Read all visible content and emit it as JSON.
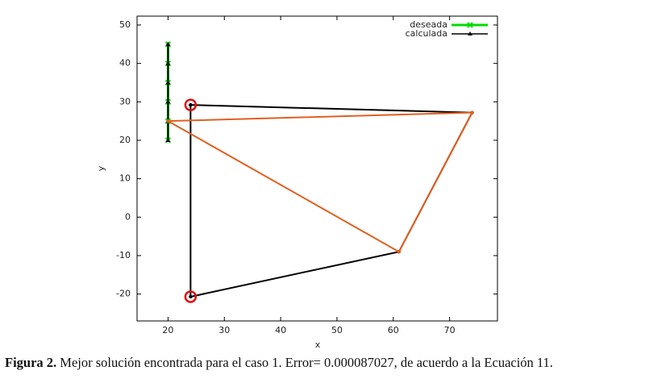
{
  "chart_data": {
    "type": "line",
    "xlabel": "x",
    "ylabel": "y",
    "xlim": [
      14.5,
      78.5
    ],
    "ylim": [
      -27,
      52.3
    ],
    "xticks": [
      20,
      30,
      40,
      50,
      60,
      70
    ],
    "yticks": [
      -20,
      -10,
      0,
      10,
      20,
      30,
      40,
      50
    ],
    "legend": "upper right",
    "series": [
      {
        "name": "deseada",
        "color": "#00dd00",
        "marker": "x",
        "line": true,
        "x": [
          20,
          20,
          20,
          20,
          20,
          20
        ],
        "y": [
          20,
          25,
          30,
          35,
          40,
          45
        ]
      },
      {
        "name": "calculada",
        "color": "#000000",
        "marker": "triangle",
        "line": true,
        "x": [
          20,
          20,
          20,
          20,
          20,
          20
        ],
        "y": [
          20,
          25,
          30,
          35,
          40,
          45
        ]
      },
      {
        "color": "#000000",
        "marker": "dot",
        "line": true,
        "x": [
          24,
          74,
          61,
          24,
          24
        ],
        "y": [
          29.2,
          27.2,
          -9,
          -20.7,
          29.2
        ]
      },
      {
        "color": "#e06020",
        "marker": "dot",
        "line": true,
        "x": [
          20,
          74,
          61,
          20
        ],
        "y": [
          25,
          27.2,
          -9,
          25
        ]
      },
      {
        "color": "#e01010",
        "marker": "circle",
        "line": false,
        "x": [
          24,
          24
        ],
        "y": [
          29.2,
          -20.7
        ]
      }
    ]
  },
  "caption": {
    "label": "Figura 2.",
    "text": "Mejor solución encontrada para el caso 1. Error= 0.000087027, de acuerdo a la Ecuación 11."
  }
}
